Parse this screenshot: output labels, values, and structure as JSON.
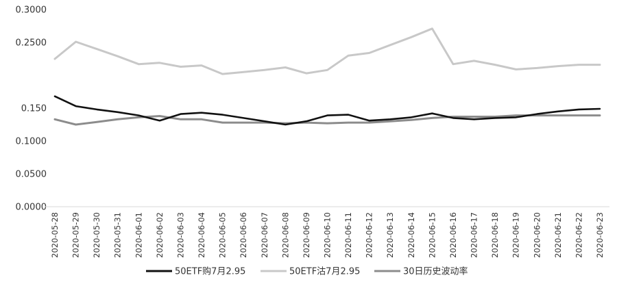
{
  "chart_data": {
    "type": "line",
    "categories": [
      "2020-05-28",
      "2020-05-29",
      "2020-05-30",
      "2020-05-31",
      "2020-06-01",
      "2020-06-02",
      "2020-06-03",
      "2020-06-04",
      "2020-06-05",
      "2020-06-06",
      "2020-06-07",
      "2020-06-08",
      "2020-06-09",
      "2020-06-10",
      "2020-06-11",
      "2020-06-12",
      "2020-06-13",
      "2020-06-14",
      "2020-06-15",
      "2020-06-16",
      "2020-06-17",
      "2020-06-18",
      "2020-06-19",
      "2020-06-20",
      "2020-06-21",
      "2020-06-22",
      "2020-06-23"
    ],
    "ylim": [
      0,
      0.3
    ],
    "yticks": [
      "0.0000",
      "0.0500",
      "0.1000",
      "0.150",
      "0.2500",
      "0.3000"
    ],
    "ytick_values": [
      0,
      0.05,
      0.1,
      0.15,
      0.25,
      0.3
    ],
    "grid": false,
    "legend_position": "bottom",
    "series": [
      {
        "name": "50ETF购7月2.95",
        "color": "#111111",
        "values": [
          0.168,
          0.153,
          0.148,
          0.144,
          0.139,
          0.131,
          0.141,
          0.143,
          0.14,
          0.135,
          0.13,
          0.125,
          0.13,
          0.139,
          0.14,
          0.131,
          0.133,
          0.136,
          0.142,
          0.135,
          0.133,
          0.135,
          0.136,
          0.141,
          0.145,
          0.148,
          0.149
        ]
      },
      {
        "name": "50ETF沽7月2.95",
        "color": "#c8c8c8",
        "values": [
          0.225,
          0.251,
          0.24,
          0.229,
          0.217,
          0.219,
          0.213,
          0.215,
          0.202,
          0.205,
          0.208,
          0.212,
          0.203,
          0.208,
          0.23,
          0.234,
          0.246,
          0.258,
          0.271,
          0.217,
          0.222,
          0.216,
          0.209,
          0.211,
          0.214,
          0.216,
          0.216
        ]
      },
      {
        "name": "30日历史波动率",
        "color": "#8c8c8c",
        "values": [
          0.133,
          0.125,
          0.129,
          0.133,
          0.136,
          0.138,
          0.133,
          0.133,
          0.128,
          0.128,
          0.128,
          0.127,
          0.128,
          0.127,
          0.128,
          0.128,
          0.13,
          0.132,
          0.135,
          0.137,
          0.137,
          0.137,
          0.139,
          0.139,
          0.139,
          0.139,
          0.139
        ]
      }
    ]
  }
}
